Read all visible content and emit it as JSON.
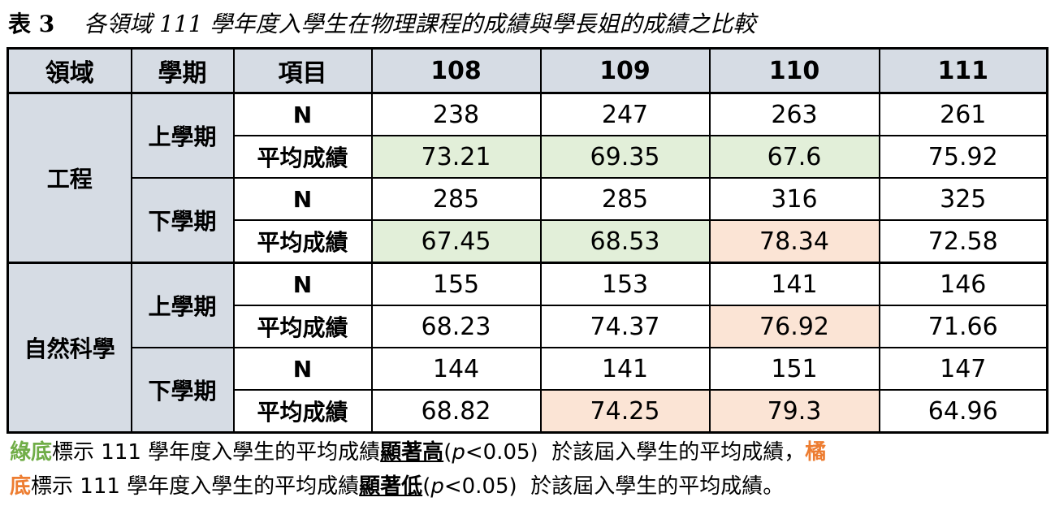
{
  "title": {
    "label": "表 3",
    "text": "各領域 111 學年度入學生在物理課程的成績與學長姐的成績之比較"
  },
  "table": {
    "header": [
      "領域",
      "學期",
      "項目",
      "108",
      "109",
      "110",
      "111"
    ],
    "groups": [
      {
        "field": "工程",
        "semesters": [
          {
            "name": "上學期",
            "rows": [
              {
                "item": "N",
                "values": [
                  238,
                  247,
                  263,
                  261
                ],
                "fills": [
                  null,
                  null,
                  null,
                  null
                ]
              },
              {
                "item": "平均成績",
                "values": [
                  73.21,
                  69.35,
                  67.6,
                  75.92
                ],
                "fills": [
                  "#e2efd9",
                  "#e2efd9",
                  "#e2efd9",
                  null
                ]
              }
            ]
          },
          {
            "name": "下學期",
            "rows": [
              {
                "item": "N",
                "values": [
                  285,
                  285,
                  316,
                  325
                ],
                "fills": [
                  null,
                  null,
                  null,
                  null
                ]
              },
              {
                "item": "平均成績",
                "values": [
                  67.45,
                  68.53,
                  78.34,
                  72.58
                ],
                "fills": [
                  "#e2efd9",
                  "#e2efd9",
                  "#fbe4d5",
                  null
                ]
              }
            ]
          }
        ]
      },
      {
        "field": "自然科學",
        "semesters": [
          {
            "name": "上學期",
            "rows": [
              {
                "item": "N",
                "values": [
                  155,
                  153,
                  141,
                  146
                ],
                "fills": [
                  null,
                  null,
                  null,
                  null
                ]
              },
              {
                "item": "平均成績",
                "values": [
                  68.23,
                  74.37,
                  76.92,
                  71.66
                ],
                "fills": [
                  null,
                  null,
                  "#fbe4d5",
                  null
                ]
              }
            ]
          },
          {
            "name": "下學期",
            "rows": [
              {
                "item": "N",
                "values": [
                  144,
                  141,
                  151,
                  147
                ],
                "fills": [
                  null,
                  null,
                  null,
                  null
                ]
              },
              {
                "item": "平均成績",
                "values": [
                  68.82,
                  74.25,
                  79.3,
                  64.96
                ],
                "fills": [
                  null,
                  "#fbe4d5",
                  "#fbe4d5",
                  null
                ]
              }
            ]
          }
        ]
      }
    ]
  },
  "note": {
    "line1": [
      {
        "text": "綠底",
        "color": "#70ad47",
        "bold": true
      },
      {
        "text": "標示 111 學年度入學生的平均成績"
      },
      {
        "text": "顯著高",
        "bold": true,
        "underline": true
      },
      {
        "text": "("
      },
      {
        "text": "p",
        "italic": true
      },
      {
        "text": "<0.05)  於該屆入學生的平均成績，"
      },
      {
        "text": "橘",
        "color": "#ed7d31",
        "bold": true
      }
    ],
    "line2": [
      {
        "text": "底",
        "color": "#ed7d31",
        "bold": true
      },
      {
        "text": "標示 111 學年度入學生的平均成績"
      },
      {
        "text": "顯著低",
        "bold": true,
        "underline": true
      },
      {
        "text": "("
      },
      {
        "text": "p",
        "italic": true
      },
      {
        "text": "<0.05)  於該屆入學生的平均成績。"
      }
    ]
  }
}
